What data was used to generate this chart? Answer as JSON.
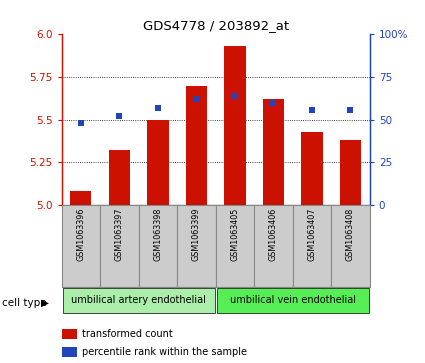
{
  "title": "GDS4778 / 203892_at",
  "samples": [
    "GSM1063396",
    "GSM1063397",
    "GSM1063398",
    "GSM1063399",
    "GSM1063405",
    "GSM1063406",
    "GSM1063407",
    "GSM1063408"
  ],
  "transformed_counts": [
    5.08,
    5.32,
    5.5,
    5.7,
    5.93,
    5.62,
    5.43,
    5.38
  ],
  "percentile_ranks": [
    48,
    52,
    57,
    62,
    64,
    60,
    56,
    56
  ],
  "ylim_left": [
    5.0,
    6.0
  ],
  "ylim_right": [
    0,
    100
  ],
  "yticks_left": [
    5.0,
    5.25,
    5.5,
    5.75,
    6.0
  ],
  "yticks_right": [
    0,
    25,
    50,
    75,
    100
  ],
  "bar_color": "#cc1100",
  "dot_color": "#2244bb",
  "background_color": "#ffffff",
  "cell_type_groups": [
    {
      "label": "umbilical artery endothelial",
      "count": 4,
      "color": "#aaeeaa"
    },
    {
      "label": "umbilical vein endothelial",
      "count": 4,
      "color": "#55ee55"
    }
  ],
  "cell_type_label": "cell type",
  "legend_items": [
    {
      "label": "transformed count",
      "color": "#cc1100"
    },
    {
      "label": "percentile rank within the sample",
      "color": "#2244bb"
    }
  ],
  "base_value": 5.0,
  "grid_lines": [
    5.25,
    5.5,
    5.75
  ],
  "bar_width": 0.55,
  "sample_box_color": "#cccccc",
  "sample_box_edge": "#888888"
}
